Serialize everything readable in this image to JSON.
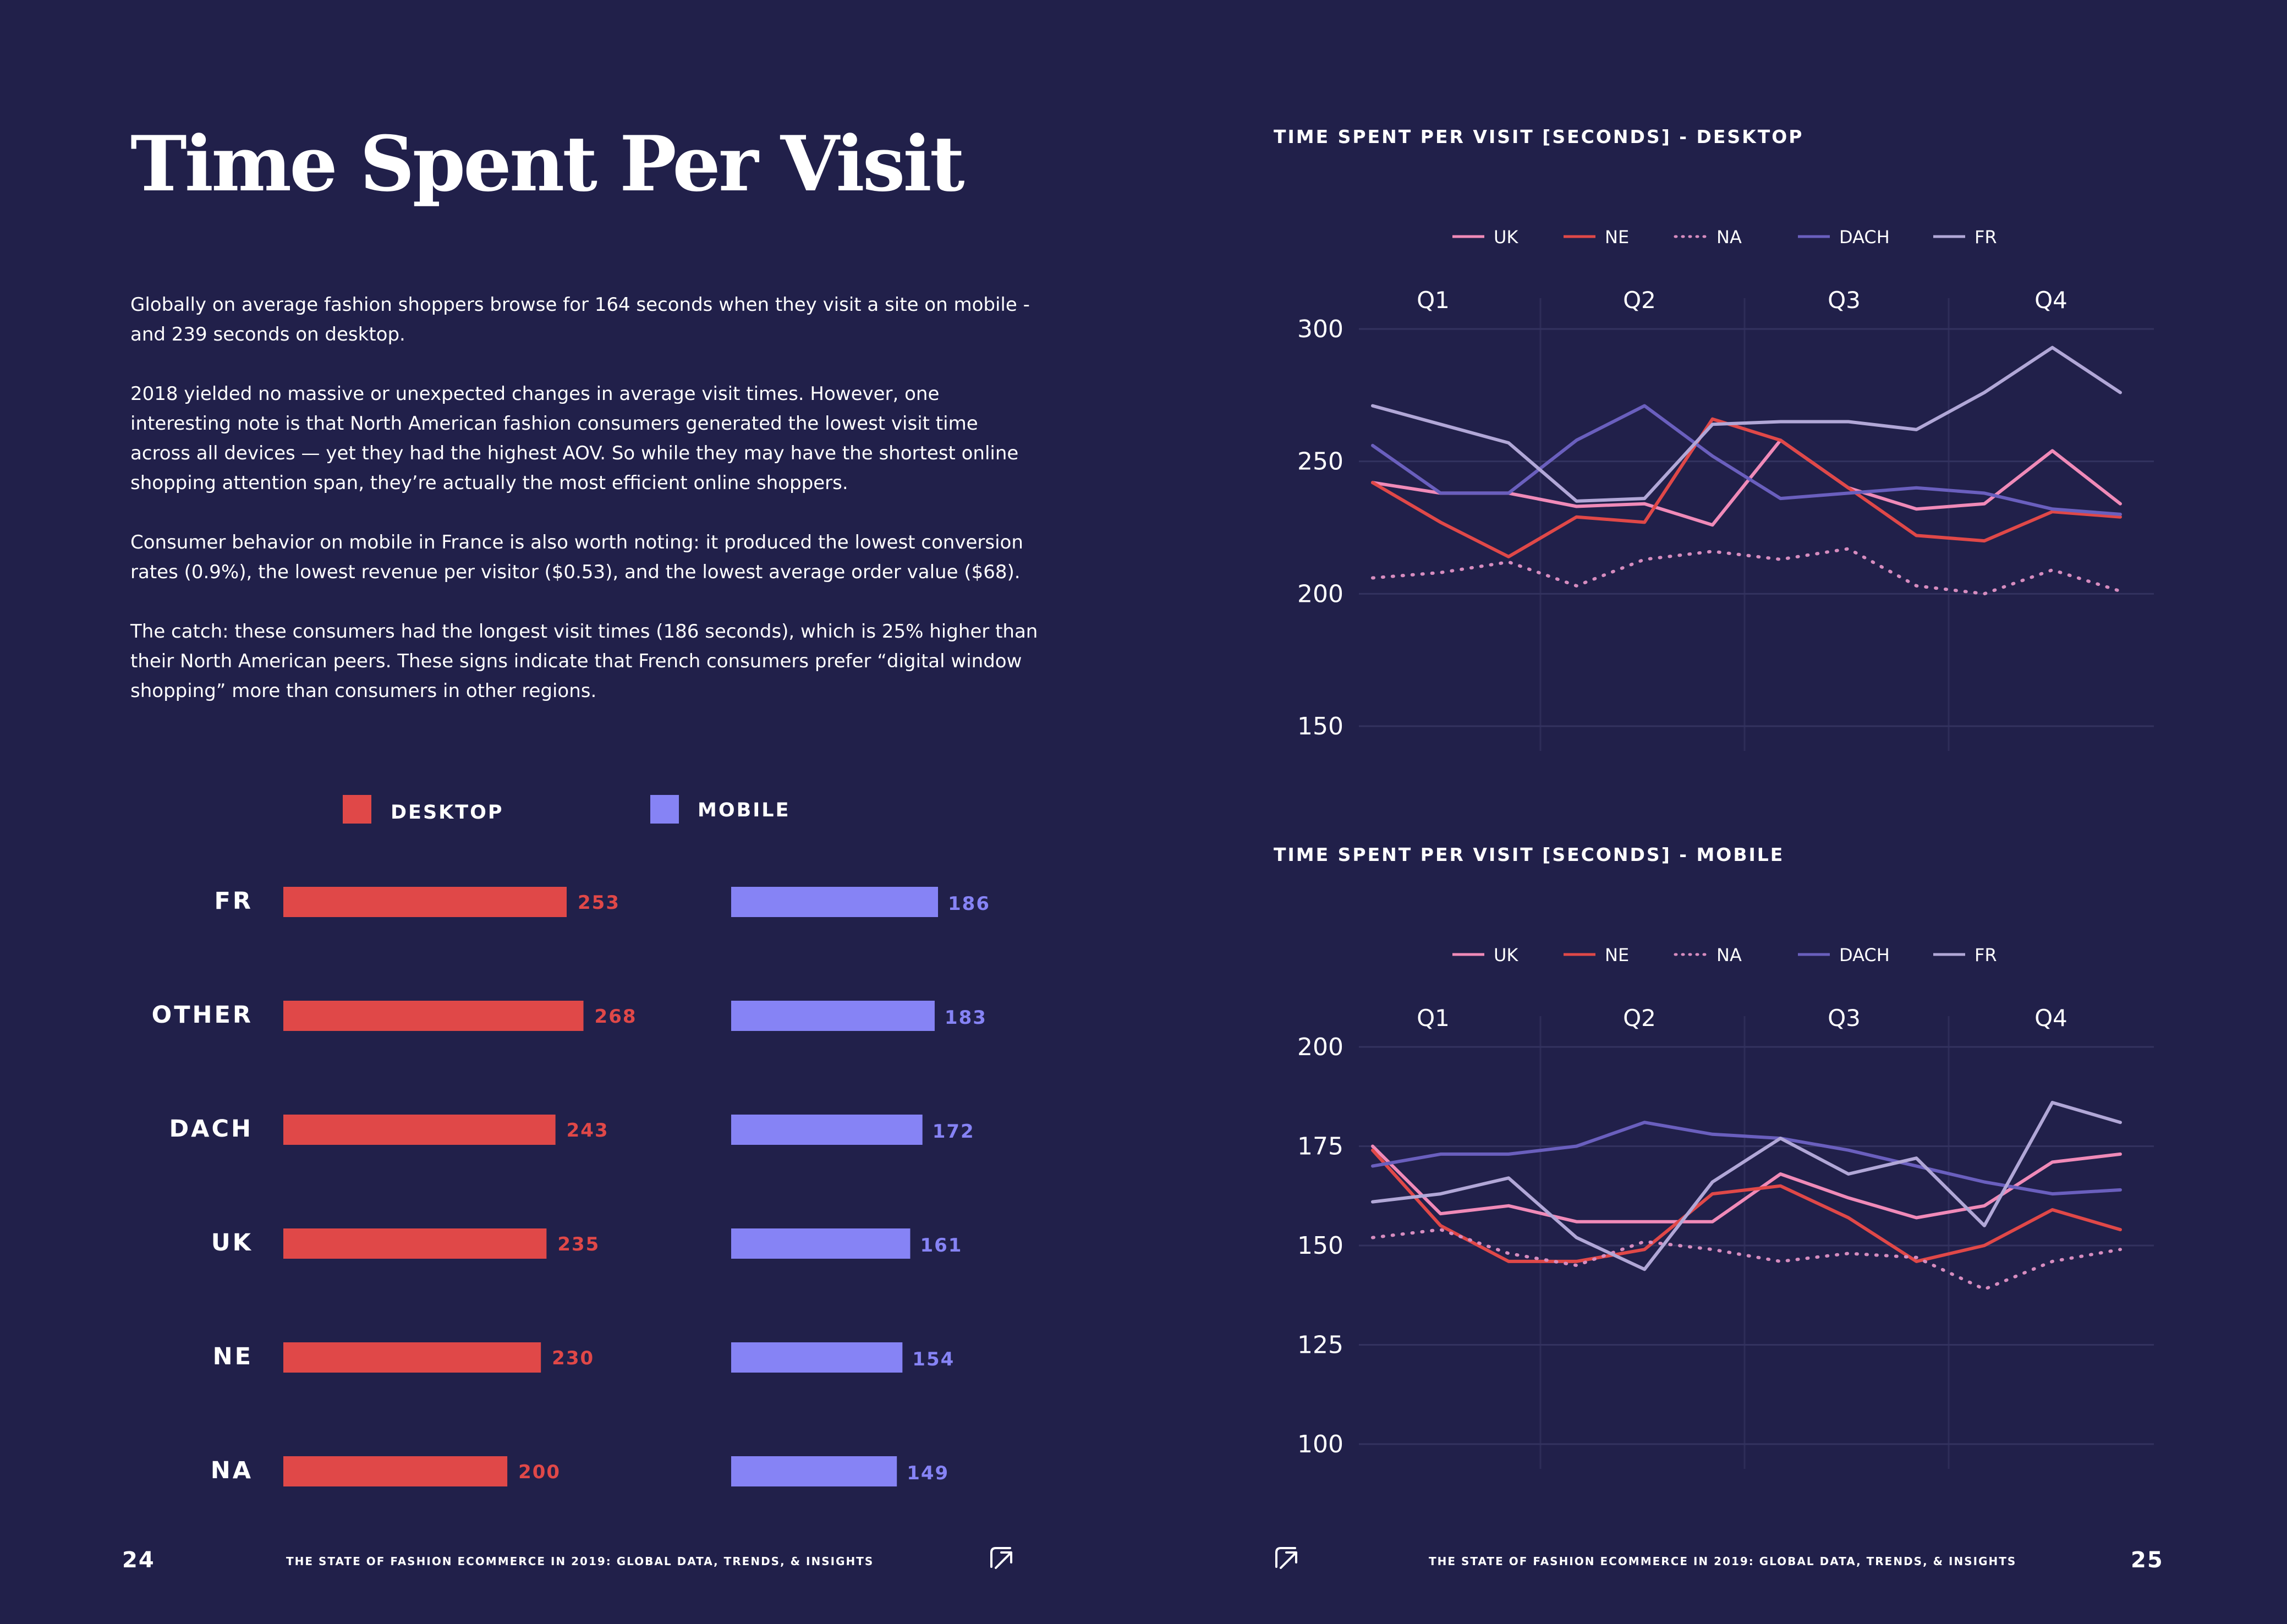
{
  "title": "Time Spent Per Visit",
  "paragraphs": [
    "Globally on average fashion shoppers browse for 164 seconds when they visit a site on mobile - and 239 seconds on desktop.",
    "2018 yielded no massive or unexpected changes in average visit times. However, one interesting note is that North American fashion consumers generated the lowest visit time across all devices — yet they had the highest AOV. So while they may have the shortest online shopping attention span, they’re actually the most efficient online shoppers.",
    "Consumer behavior on mobile in France is also worth noting: it produced the lowest conversion rates (0.9%), the lowest revenue per visitor ($0.53), and the lowest average order value ($68).",
    "The catch: these consumers had the longest visit times (186 seconds), which is 25% higher than their North American peers. These signs indicate that French consumers prefer “digital window shopping” more than consumers in other regions."
  ],
  "footer": {
    "left_page": "24",
    "right_page": "25",
    "text": "THE STATE OF FASHION ECOMMERCE IN 2019: GLOBAL DATA, TRENDS, & INSIGHTS",
    "logo_icon": "arrow-logo-icon"
  },
  "colors": {
    "background": "#21204a",
    "desktop": "#e04848",
    "mobile": "#8683f5",
    "UK": "#f08ab8",
    "NE": "#e04848",
    "NA": "#d68cbf",
    "DACH": "#6a5fbe",
    "FR": "#b1a7d7",
    "grid": "#33325f",
    "quarter_line": "#2e2d58"
  },
  "chart_data": [
    {
      "type": "bar",
      "title": "",
      "legend": [
        "DESKTOP",
        "MOBILE"
      ],
      "categories": [
        "FR",
        "OTHER",
        "DACH",
        "UK",
        "NE",
        "NA"
      ],
      "series": [
        {
          "name": "DESKTOP",
          "values": [
            253,
            268,
            243,
            235,
            230,
            200
          ]
        },
        {
          "name": "MOBILE",
          "values": [
            186,
            183,
            172,
            161,
            154,
            149
          ]
        }
      ]
    },
    {
      "type": "line",
      "title": "TIME SPENT PER VISIT [SECONDS] - DESKTOP",
      "quarters": [
        "Q1",
        "Q2",
        "Q3",
        "Q4"
      ],
      "x": [
        1,
        2,
        3,
        4,
        5,
        6,
        7,
        8,
        9,
        10,
        11,
        12
      ],
      "yticks": [
        300,
        250,
        200,
        150
      ],
      "ylim": [
        150,
        300
      ],
      "legend": [
        "UK",
        "NE",
        "NA",
        "DACH",
        "FR"
      ],
      "series": [
        {
          "name": "UK",
          "values": [
            242,
            238,
            238,
            233,
            234,
            226,
            258,
            240,
            232,
            234,
            254,
            234
          ]
        },
        {
          "name": "NE",
          "values": [
            242,
            227,
            214,
            229,
            227,
            266,
            258,
            240,
            222,
            220,
            231,
            229
          ]
        },
        {
          "name": "NA",
          "values": [
            206,
            208,
            212,
            203,
            213,
            216,
            213,
            217,
            203,
            200,
            209,
            201
          ]
        },
        {
          "name": "DACH",
          "values": [
            256,
            238,
            238,
            258,
            271,
            252,
            236,
            238,
            240,
            238,
            232,
            230
          ]
        },
        {
          "name": "FR",
          "values": [
            271,
            264,
            257,
            235,
            236,
            264,
            265,
            265,
            262,
            276,
            293,
            276
          ]
        }
      ]
    },
    {
      "type": "line",
      "title": "TIME SPENT PER VISIT [SECONDS] - MOBILE",
      "quarters": [
        "Q1",
        "Q2",
        "Q3",
        "Q4"
      ],
      "x": [
        1,
        2,
        3,
        4,
        5,
        6,
        7,
        8,
        9,
        10,
        11,
        12
      ],
      "yticks": [
        200,
        175,
        150,
        125,
        100
      ],
      "ylim": [
        100,
        200
      ],
      "legend": [
        "UK",
        "NE",
        "NA",
        "DACH",
        "FR"
      ],
      "series": [
        {
          "name": "UK",
          "values": [
            175,
            158,
            160,
            156,
            156,
            156,
            168,
            162,
            157,
            160,
            171,
            173
          ]
        },
        {
          "name": "NE",
          "values": [
            174,
            155,
            146,
            146,
            149,
            163,
            165,
            157,
            146,
            150,
            159,
            154
          ]
        },
        {
          "name": "NA",
          "values": [
            152,
            154,
            148,
            145,
            151,
            149,
            146,
            148,
            147,
            139,
            146,
            149
          ]
        },
        {
          "name": "DACH",
          "values": [
            170,
            173,
            173,
            175,
            181,
            178,
            177,
            174,
            170,
            166,
            163,
            164
          ]
        },
        {
          "name": "FR",
          "values": [
            161,
            163,
            167,
            152,
            144,
            166,
            177,
            168,
            172,
            155,
            186,
            181
          ]
        }
      ]
    }
  ]
}
